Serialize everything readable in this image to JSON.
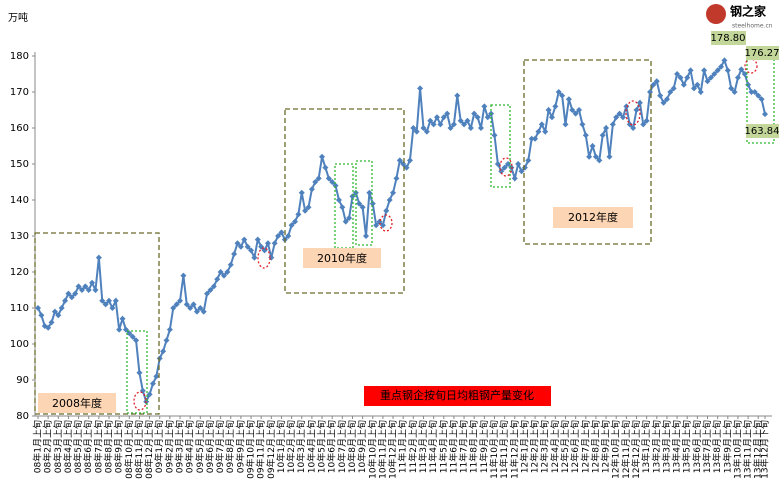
{
  "chart_data": {
    "type": "line",
    "title": "重点钢企按旬日均粗钢产量变化",
    "y_label": "万吨",
    "logo": {
      "name": "钢之家",
      "site": "steelhome.cn"
    },
    "annotations": [
      "2008年度",
      "2010年度",
      "2012年度"
    ],
    "ylim": [
      80,
      180
    ],
    "yticks": [
      80,
      90,
      100,
      110,
      120,
      130,
      140,
      150,
      160,
      170,
      180
    ],
    "grid": false,
    "color": "#4f81bd",
    "categories": [
      "08年1月上旬",
      null,
      null,
      "08年2月上旬",
      null,
      null,
      "08年3月上旬",
      null,
      null,
      "08年4月上旬",
      null,
      null,
      "08年5月上旬",
      null,
      null,
      "08年6月上旬",
      null,
      null,
      "08年7月上旬",
      null,
      null,
      "08年8月上旬",
      null,
      null,
      "08年9月上旬",
      null,
      null,
      "08年10月上旬",
      null,
      null,
      "08年11月上旬",
      null,
      null,
      "08年12月上旬",
      null,
      null,
      "09年1月上旬",
      null,
      null,
      "09年2月上旬",
      null,
      null,
      "09年3月上旬",
      null,
      null,
      "09年4月上旬",
      null,
      null,
      "09年5月上旬",
      null,
      null,
      "09年6月上旬",
      null,
      null,
      "09年7月上旬",
      null,
      null,
      "09年8月上旬",
      null,
      null,
      "09年9月上旬",
      null,
      null,
      "09年10月上旬",
      null,
      null,
      "09年11月上旬",
      null,
      null,
      "09年12月上旬",
      null,
      null,
      "10年1月上旬",
      null,
      null,
      "10年2月上旬",
      null,
      null,
      "10年3月上旬",
      null,
      null,
      "10年4月上旬",
      null,
      null,
      "10年5月上旬",
      null,
      null,
      "10年6月上旬",
      null,
      null,
      "10年7月上旬",
      null,
      null,
      "10年8月上旬",
      null,
      null,
      "10年9月上旬",
      null,
      null,
      "10年10月上旬",
      null,
      null,
      "10年11月上旬",
      null,
      null,
      "10年12月上旬",
      null,
      null,
      "11年1月上旬",
      null,
      null,
      "11年2月上旬",
      null,
      null,
      "11年3月上旬",
      null,
      null,
      "11年4月上旬",
      null,
      null,
      "11年5月上旬",
      null,
      null,
      "11年6月上旬",
      null,
      null,
      "11年7月上旬",
      null,
      null,
      "11年8月上旬",
      null,
      null,
      "11年9月上旬",
      null,
      null,
      "11年10月上旬",
      null,
      null,
      "11年11月上旬",
      null,
      null,
      "11年12月上旬",
      null,
      null,
      "12年1月上旬",
      null,
      null,
      "12年2月上旬",
      null,
      null,
      "12年3月上旬",
      null,
      null,
      "12年4月上旬",
      null,
      null,
      "12年5月上旬",
      null,
      null,
      "12年6月上旬",
      null,
      null,
      "12年7月上旬",
      null,
      null,
      "12年8月上旬",
      null,
      null,
      "12年9月上旬",
      null,
      null,
      "12年10月上旬",
      null,
      null,
      "12年11月上旬",
      null,
      null,
      "12年12月上旬",
      null,
      null,
      "13年1月上旬",
      null,
      null,
      "13年2月上旬",
      null,
      null,
      "13年3月上旬",
      null,
      null,
      "13年4月上旬",
      null,
      null,
      "13年5月上旬",
      null,
      null,
      "13年6月上旬",
      null,
      null,
      "13年7月上旬",
      null,
      null,
      "13年8月上旬",
      null,
      null,
      "13年9月上旬",
      null,
      null,
      "13年10月上旬",
      null,
      null,
      "13年11月上旬",
      null,
      null,
      "13年12月上旬",
      null,
      "13年12月下旬"
    ],
    "values": [
      110,
      108,
      105,
      104.5,
      106,
      109,
      108,
      110,
      112,
      114,
      113,
      114,
      116,
      115,
      116,
      115,
      117,
      115,
      124,
      112,
      111,
      112,
      110,
      112,
      104,
      107,
      104,
      103,
      102,
      101,
      92,
      87,
      84,
      86,
      89,
      91,
      96,
      98,
      101,
      104,
      110,
      111,
      112,
      119,
      111,
      110,
      111,
      109,
      110,
      109,
      114,
      115,
      116,
      118,
      120,
      119,
      120,
      122,
      125,
      128,
      127,
      129,
      127,
      126,
      124,
      129,
      127,
      126,
      128,
      124,
      128,
      130,
      131,
      129,
      130,
      133,
      134,
      136,
      142,
      137,
      138,
      143,
      145,
      146,
      152,
      149,
      146,
      145,
      144,
      140,
      138,
      134,
      135,
      141,
      142,
      139,
      138,
      130,
      142,
      139,
      133,
      134,
      133,
      137,
      140,
      142,
      146,
      151,
      150,
      149,
      151,
      160,
      159,
      171,
      160,
      159,
      162,
      161,
      163,
      161,
      163,
      164,
      160,
      161,
      169,
      162,
      161,
      162,
      160,
      164,
      163,
      160,
      166,
      163,
      164,
      158,
      150,
      148,
      149,
      150,
      149,
      146,
      150,
      148,
      149,
      151,
      157,
      157,
      159,
      161,
      159,
      165,
      163,
      166,
      170,
      169,
      161,
      168,
      165,
      164,
      165,
      161,
      158,
      152,
      155,
      152,
      151,
      158,
      160,
      152,
      161,
      163,
      164,
      163,
      166,
      161,
      160,
      165,
      167,
      161,
      162,
      170,
      172,
      173,
      169,
      167,
      168,
      170,
      171,
      175,
      174,
      172,
      174,
      176,
      171,
      172,
      170,
      176,
      173,
      174,
      175,
      176,
      177,
      178.8,
      176,
      171,
      170,
      174,
      176.27,
      175,
      172,
      170,
      170,
      169,
      168,
      163.84
    ],
    "value_labels": [
      null,
      null,
      null,
      null,
      null,
      null,
      null,
      null,
      null,
      null,
      null,
      null,
      null,
      null,
      null,
      null,
      null,
      null,
      null,
      null,
      null,
      null,
      null,
      null,
      null,
      null,
      null,
      null,
      null,
      null,
      null,
      null,
      null,
      null,
      null,
      null,
      null,
      null,
      null,
      null,
      null,
      null,
      null,
      null,
      null,
      null,
      null,
      null,
      null,
      null,
      null,
      null,
      null,
      null,
      null,
      null,
      null,
      null,
      null,
      null,
      null,
      null,
      null,
      null,
      null,
      null,
      null,
      null,
      null,
      null,
      null,
      null,
      null,
      null,
      null,
      null,
      null,
      null,
      null,
      null,
      null,
      null,
      null,
      null,
      null,
      null,
      null,
      null,
      null,
      null,
      null,
      null,
      null,
      null,
      null,
      null,
      null,
      null,
      null,
      null,
      null,
      null,
      null,
      null,
      null,
      null,
      null,
      null,
      null,
      null,
      null,
      null,
      null,
      null,
      null,
      null,
      null,
      null,
      null,
      null,
      null,
      null,
      null,
      null,
      null,
      null,
      null,
      null,
      null,
      null,
      null,
      null,
      null,
      null,
      null,
      null,
      null,
      null,
      null,
      null,
      null,
      null,
      null,
      null,
      null,
      null,
      null,
      null,
      null,
      null,
      null,
      null,
      null,
      null,
      null,
      null,
      null,
      null,
      null,
      null,
      null,
      null,
      null,
      null,
      null,
      null,
      null,
      null,
      null,
      null,
      null,
      null,
      null,
      null,
      null,
      null,
      null,
      null,
      null,
      null,
      null,
      null,
      null,
      null,
      null,
      null,
      null,
      null,
      null,
      null,
      null,
      null,
      null,
      null,
      null,
      null,
      null,
      null,
      null,
      null,
      null,
      null,
      null,
      "178.80",
      null,
      null,
      null,
      null,
      "176.27",
      null,
      null,
      null,
      null,
      null,
      null,
      "163.84"
    ]
  }
}
